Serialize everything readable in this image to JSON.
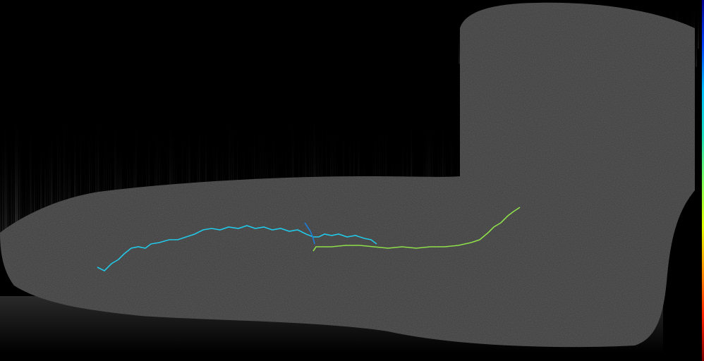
{
  "image": {
    "background_color": "#000000",
    "tissue_color": "#3c3c3c",
    "streak_color": "#5a5a5a"
  },
  "trace": {
    "colormap": [
      "#00008f",
      "#0040ff",
      "#00c0ff",
      "#20e0c0",
      "#80ff60",
      "#e0ff00",
      "#ff9000",
      "#ff2000",
      "#800000"
    ],
    "segments": [
      {
        "color": "#22c8e8"
      },
      {
        "color": "#1a7fd8"
      },
      {
        "color": "#8ee04a"
      }
    ]
  }
}
